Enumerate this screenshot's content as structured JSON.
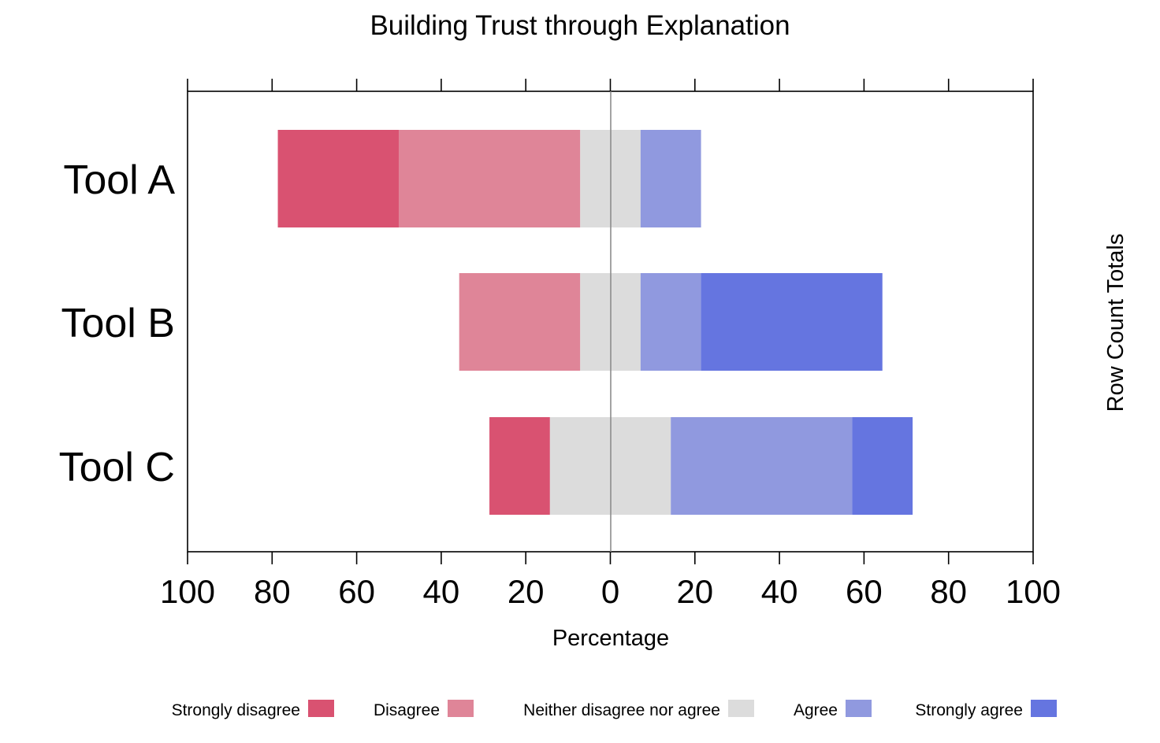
{
  "chart_data": {
    "type": "bar",
    "orientation": "horizontal",
    "stacking": "diverging",
    "title": "Building Trust through Explanation",
    "xlabel": "Percentage",
    "right_label": "Row Count Totals",
    "xlim": [
      -100,
      100
    ],
    "x_ticks": [
      -100,
      -80,
      -60,
      -40,
      -20,
      0,
      20,
      40,
      60,
      80,
      100
    ],
    "x_tick_labels": [
      "100",
      "80",
      "60",
      "40",
      "20",
      "0",
      "20",
      "40",
      "60",
      "80",
      "100"
    ],
    "grid": false,
    "legend_position": "bottom",
    "categories": [
      "Tool A",
      "Tool B",
      "Tool C"
    ],
    "series": [
      {
        "name": "Strongly disagree",
        "color": "#D95271",
        "values": [
          28.6,
          0,
          14.3
        ]
      },
      {
        "name": "Disagree",
        "color": "#DF8598",
        "values": [
          42.9,
          28.6,
          0
        ]
      },
      {
        "name": "Neither disagree nor agree",
        "color": "#DCDCDC",
        "values": [
          14.3,
          14.3,
          28.6
        ]
      },
      {
        "name": "Agree",
        "color": "#9099DF",
        "values": [
          14.3,
          14.3,
          42.9
        ]
      },
      {
        "name": "Strongly agree",
        "color": "#6575E0",
        "values": [
          0,
          42.9,
          14.3
        ]
      }
    ]
  }
}
